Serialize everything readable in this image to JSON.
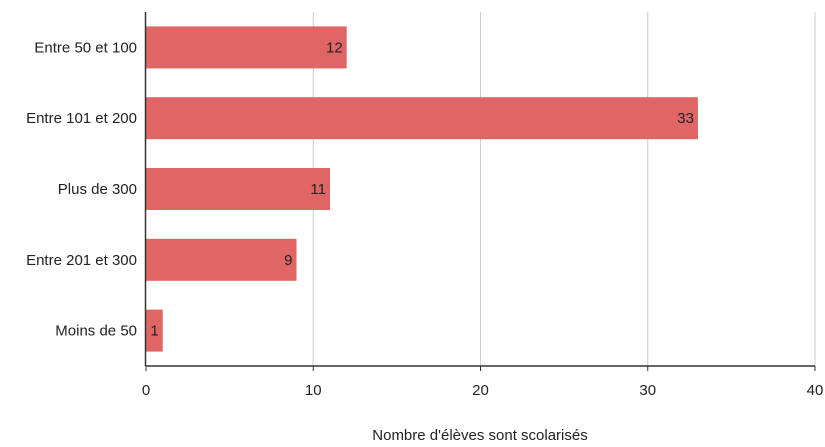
{
  "chart_data": {
    "type": "bar",
    "orientation": "horizontal",
    "categories": [
      "Entre 50 et 100",
      "Entre 101 et 200",
      "Plus de 300",
      "Entre 201 et 300",
      "Moins de 50"
    ],
    "values": [
      12,
      33,
      11,
      9,
      1
    ],
    "xlabel": "Nombre d'élèves sont scolarisés",
    "ylabel": "",
    "xlim": [
      0,
      40
    ],
    "xticks": [
      0,
      10,
      20,
      30,
      40
    ],
    "grid": true,
    "bar_color": "#e06666",
    "data_labels": true
  }
}
